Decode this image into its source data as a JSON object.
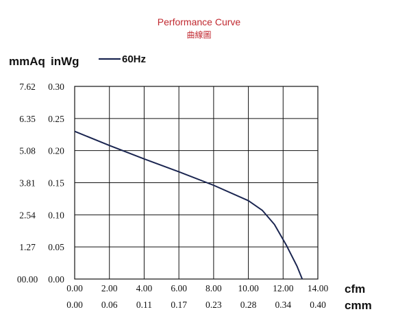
{
  "chart_data": {
    "type": "line",
    "title": "Performance Curve",
    "subtitle": "曲線圖",
    "y_units": [
      "mmAq",
      "inWg"
    ],
    "x_units": [
      "cfm",
      "cmm"
    ],
    "y_ticks_mmAq": [
      "00.00",
      "1.27",
      "2.54",
      "3.81",
      "5.08",
      "6.35",
      "7.62"
    ],
    "y_ticks_inWg": [
      "0.00",
      "0.05",
      "0.10",
      "0.15",
      "0.20",
      "0.25",
      "0.30"
    ],
    "x_ticks_cfm": [
      "0.00",
      "2.00",
      "4.00",
      "6.00",
      "8.00",
      "10.00",
      "12.00",
      "14.00"
    ],
    "x_ticks_cmm": [
      "0.00",
      "0.06",
      "0.11",
      "0.17",
      "0.23",
      "0.28",
      "0.34",
      "0.40"
    ],
    "xlim": [
      0,
      14
    ],
    "ylim": [
      0,
      0.3
    ],
    "grid": true,
    "legend_position": "top-left",
    "series": [
      {
        "name": "60Hz",
        "color": "#1a2550",
        "x": [
          0,
          2,
          4,
          6,
          8,
          10,
          10.8,
          11.5,
          12.2,
          12.8,
          13.1
        ],
        "y": [
          0.23,
          0.208,
          0.187,
          0.167,
          0.146,
          0.122,
          0.107,
          0.085,
          0.052,
          0.02,
          0.0
        ]
      }
    ]
  }
}
